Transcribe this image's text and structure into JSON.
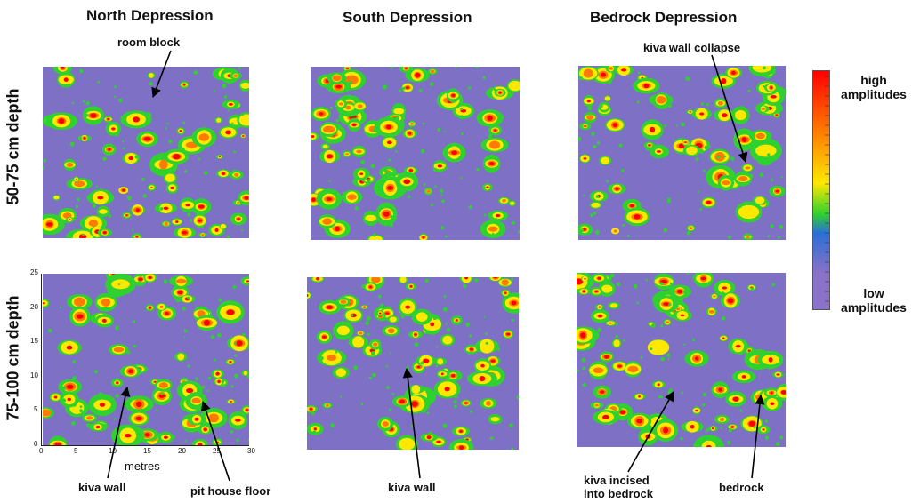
{
  "columns": {
    "north": "North Depression",
    "south": "South Depression",
    "bedrock": "Bedrock Depression"
  },
  "rows": {
    "top": "50-75 cm depth",
    "bottom": "75-100 cm depth"
  },
  "annotations": {
    "room_block": "room block",
    "kiva_wall_collapse": "kiva wall collapse",
    "kiva_wall_north": "kiva wall",
    "pit_house_floor": "pit house floor",
    "kiva_wall_south": "kiva wall",
    "kiva_incised_line1": "kiva incised",
    "kiva_incised_line2": "into bedrock",
    "bedrock": "bedrock"
  },
  "axis": {
    "xlabel": "metres",
    "x_ticks": [
      "0",
      "5",
      "10",
      "15",
      "20",
      "25",
      "30"
    ],
    "y_ticks": [
      "25",
      "20",
      "15",
      "10",
      "5",
      "0"
    ]
  },
  "legend": {
    "high_line1": "high",
    "high_line2": "amplitudes",
    "low_line1": "low",
    "low_line2": "amplitudes",
    "colors": [
      "#ff0000",
      "#ff7a00",
      "#ffe800",
      "#2fd12f",
      "#2a6fd6",
      "#8a72c8"
    ]
  }
}
